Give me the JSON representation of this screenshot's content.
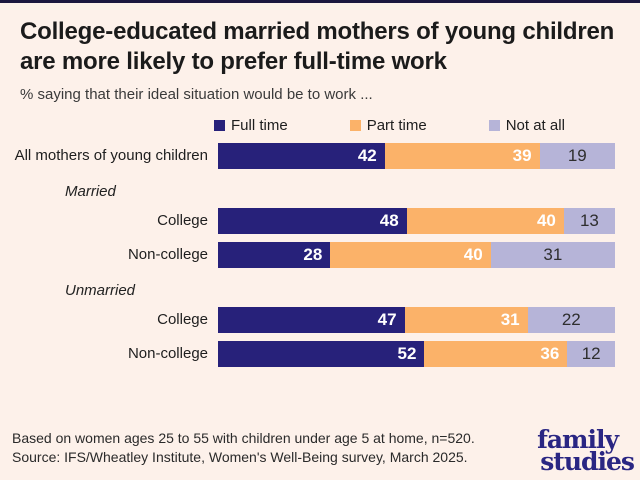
{
  "page": {
    "background": "#fdf1ea",
    "top_border_color": "#1b163e"
  },
  "header": {
    "title": "College-educated married mothers of young children are more likely to prefer full-time work",
    "subtitle": "% saying that their ideal situation would be to work ..."
  },
  "chart_data": {
    "type": "bar",
    "orientation": "horizontal",
    "stacked": true,
    "xlim": [
      0,
      100
    ],
    "grid": false,
    "legend_position": "top",
    "series_names": [
      "Full time",
      "Part time",
      "Not at all"
    ],
    "series_colors": [
      "#27217a",
      "#fbb269",
      "#b6b4d8"
    ],
    "value_label_colors": [
      "#ffffff",
      "#ffffff",
      "#2e2e2e"
    ],
    "rows": [
      {
        "kind": "bar",
        "label": "All mothers of young children",
        "values": [
          42,
          39,
          19
        ]
      },
      {
        "kind": "group",
        "label": "Married"
      },
      {
        "kind": "bar",
        "label": "College",
        "values": [
          48,
          40,
          13
        ]
      },
      {
        "kind": "bar",
        "label": "Non-college",
        "values": [
          28,
          40,
          31
        ]
      },
      {
        "kind": "group",
        "label": "Unmarried"
      },
      {
        "kind": "bar",
        "label": "College",
        "values": [
          47,
          31,
          22
        ]
      },
      {
        "kind": "bar",
        "label": "Non-college",
        "values": [
          52,
          36,
          12
        ]
      }
    ]
  },
  "footer": {
    "line1": "Based on women ages 25 to 55 with children under age 5 at home, n=520.",
    "line2": "Source: IFS/Wheatley Institute, Women's Well-Being survey, March 2025."
  },
  "logo": {
    "line1": "family",
    "line2": "studies",
    "color": "#2a2683"
  }
}
